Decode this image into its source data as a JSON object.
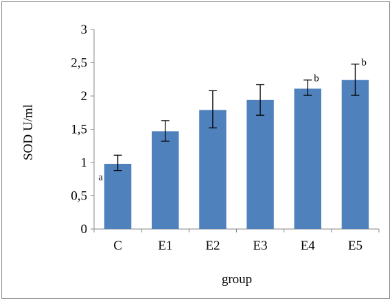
{
  "chart_data": {
    "type": "bar",
    "title": "",
    "xlabel": "group",
    "ylabel": "SOD U/ml",
    "categories": [
      "C",
      "E1",
      "E2",
      "E3",
      "E4",
      "E5"
    ],
    "values": [
      0.98,
      1.47,
      1.79,
      1.94,
      2.11,
      2.24
    ],
    "error_low": [
      0.88,
      1.32,
      1.52,
      1.71,
      2.01,
      2.01
    ],
    "error_high": [
      1.11,
      1.63,
      2.08,
      2.17,
      2.24,
      2.48
    ],
    "significance": [
      "a",
      "",
      "",
      "",
      "b",
      "b"
    ],
    "ylim": [
      0,
      3
    ],
    "yticks": [
      0,
      0.5,
      1,
      1.5,
      2,
      2.5,
      3
    ],
    "ytick_labels": [
      "0",
      "0,5",
      "1",
      "1,5",
      "2",
      "2,5",
      "3"
    ],
    "grid": false,
    "legend": "none",
    "bar_color": "#4f81bd"
  }
}
